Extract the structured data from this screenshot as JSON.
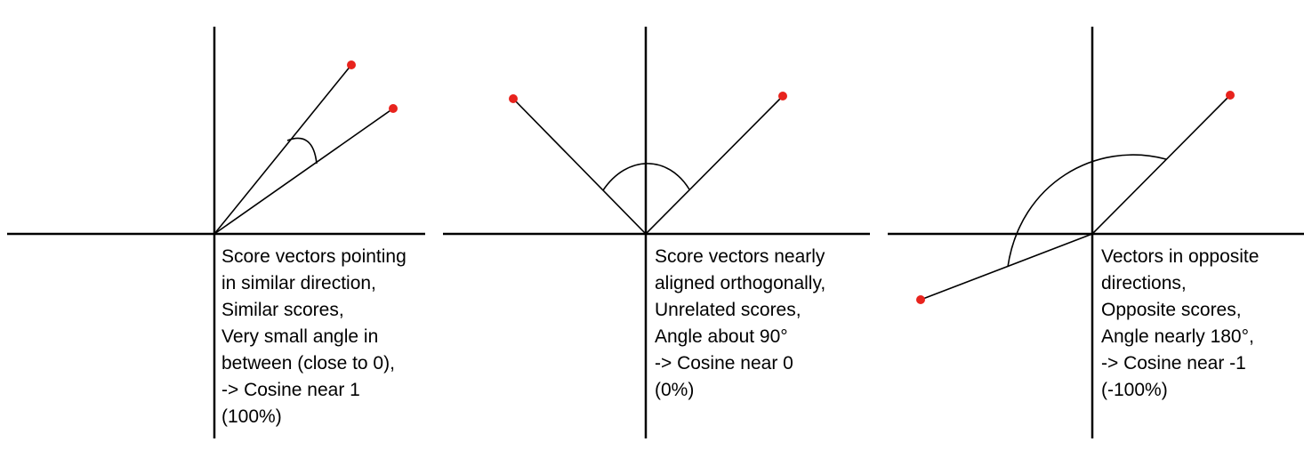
{
  "colors": {
    "line": "#000000",
    "endpoint": "#e8231d"
  },
  "panels": [
    {
      "caption": [
        "Score vectors pointing",
        "in similar direction,",
        "Similar scores,",
        "Very small angle in",
        "between (close to 0),",
        "-> Cosine near 1",
        "(100%)"
      ]
    },
    {
      "caption": [
        "Score vectors nearly",
        "aligned orthogonally,",
        "Unrelated scores,",
        "Angle about 90°",
        "-> Cosine near 0",
        "(0%)"
      ]
    },
    {
      "caption": [
        "Vectors in opposite",
        "directions,",
        "Opposite scores,",
        "Angle nearly 180°,",
        "-> Cosine near -1",
        "(-100%)"
      ]
    }
  ]
}
